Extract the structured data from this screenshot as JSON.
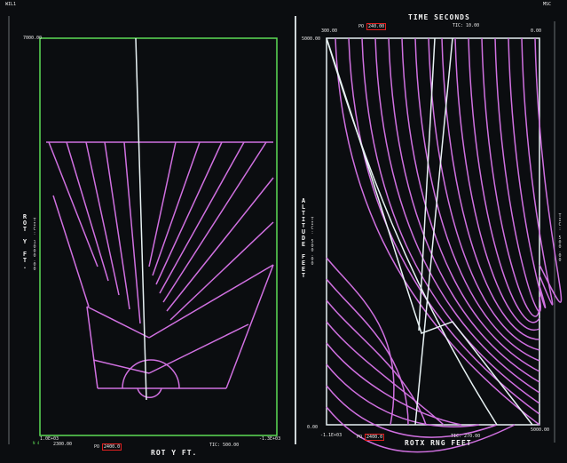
{
  "colors": {
    "background": "#0b0d10",
    "frame_left": "#5ddc56",
    "curve": "#d070e0",
    "trace": "#e8f2f4",
    "text": "#f0f0f0",
    "po_box": "#e02020"
  },
  "top": {
    "left_corner": "WIL1",
    "right_corner": "MSC",
    "title": "TIME  SECONDS"
  },
  "left_panel": {
    "y_top_value": "7000.00",
    "y_label": "ROT  Y  FT.",
    "y_side_label": "TIC:  1000.00",
    "x_left_value": "1.0E+03",
    "x_left_value2": "2300.00",
    "x_right_value": "-1.3E+03",
    "po_label": "PO",
    "po_value": "2400.0",
    "x_label": "ROT  Y  FT.",
    "tic": "TIC:  500.00",
    "bottom_left_small": "N  4"
  },
  "right_panel": {
    "time_left_value": "300.00",
    "time_right_value": "0.00",
    "po_top_label": "PO",
    "po_top_value": "240.00",
    "tic_top": "TIC:  10.00",
    "y_top_value": "5000.00",
    "y_bottom_value": "0.00",
    "y_label": "ALTITUDE  FEET",
    "y_side_label": "TIC:  500.00",
    "right_side_label": "TIC:  500.00",
    "x_left_value": "-1.1E+03",
    "x_right_value": "5000.00",
    "po_label": "PO",
    "po_value": "2400.0",
    "x_label": "ROTX  RNG  FEET",
    "tic": "TIC:  270.00"
  }
}
